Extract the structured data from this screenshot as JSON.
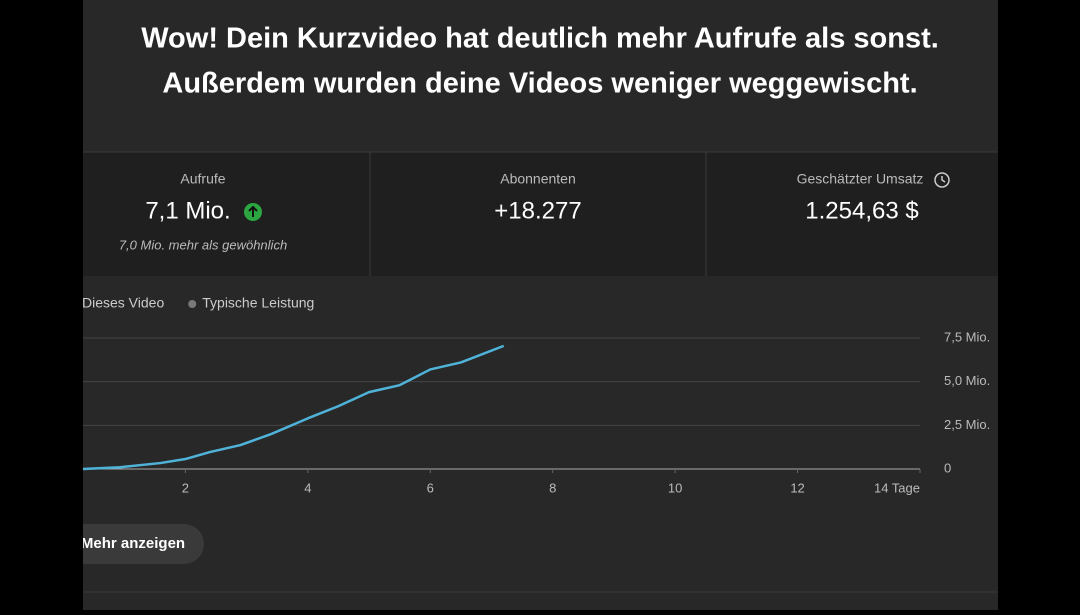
{
  "header": {
    "title_lines": [
      "Wow! Dein Kurzvideo hat deutlich mehr Aufrufe als sonst.",
      "Außerdem wurden deine Videos weniger weggewischt."
    ]
  },
  "stats": [
    {
      "label": "Aufrufe",
      "value": "7,1 Mio.",
      "note": "7,0 Mio. mehr als gewöhnlich"
    },
    {
      "label": "Abonnenten",
      "value": "+18.277"
    },
    {
      "label": "Geschätzter Umsatz",
      "value": "1.254,63 $"
    }
  ],
  "chart_data": {
    "type": "line",
    "x": [
      0,
      0.33,
      0.93,
      1.59,
      2,
      2.4,
      2.9,
      3.4,
      4,
      4.5,
      5,
      5.5,
      6,
      6.5,
      7.2
    ],
    "series": [
      {
        "name": "Dieses Video",
        "color": "#4fb3d9",
        "values": [
          0,
          0,
          0.1,
          0.34,
          0.57,
          0.97,
          1.37,
          2.0,
          2.9,
          3.6,
          4.4,
          4.8,
          5.7,
          6.1,
          7.05
        ]
      },
      {
        "name": "Typische Leistung",
        "color": "#7a7a7a",
        "values": [
          null,
          null,
          null,
          null,
          null,
          null,
          null,
          null,
          null,
          null,
          null,
          null,
          null,
          null,
          null
        ]
      }
    ],
    "xlim": [
      0,
      14
    ],
    "xticks": [
      2,
      4,
      6,
      8,
      10,
      12,
      {
        "value": 14,
        "label": "14 Tage"
      }
    ],
    "ylim": [
      0,
      7.5
    ],
    "yticks": [
      0,
      {
        "value": 2.5,
        "label": "2,5 Mio."
      },
      {
        "value": 5,
        "label": "5,0 Mio."
      },
      {
        "value": 7.5,
        "label": "7,5 Mio."
      }
    ],
    "grid": true
  },
  "button": {
    "label": "Mehr anzeigen"
  }
}
